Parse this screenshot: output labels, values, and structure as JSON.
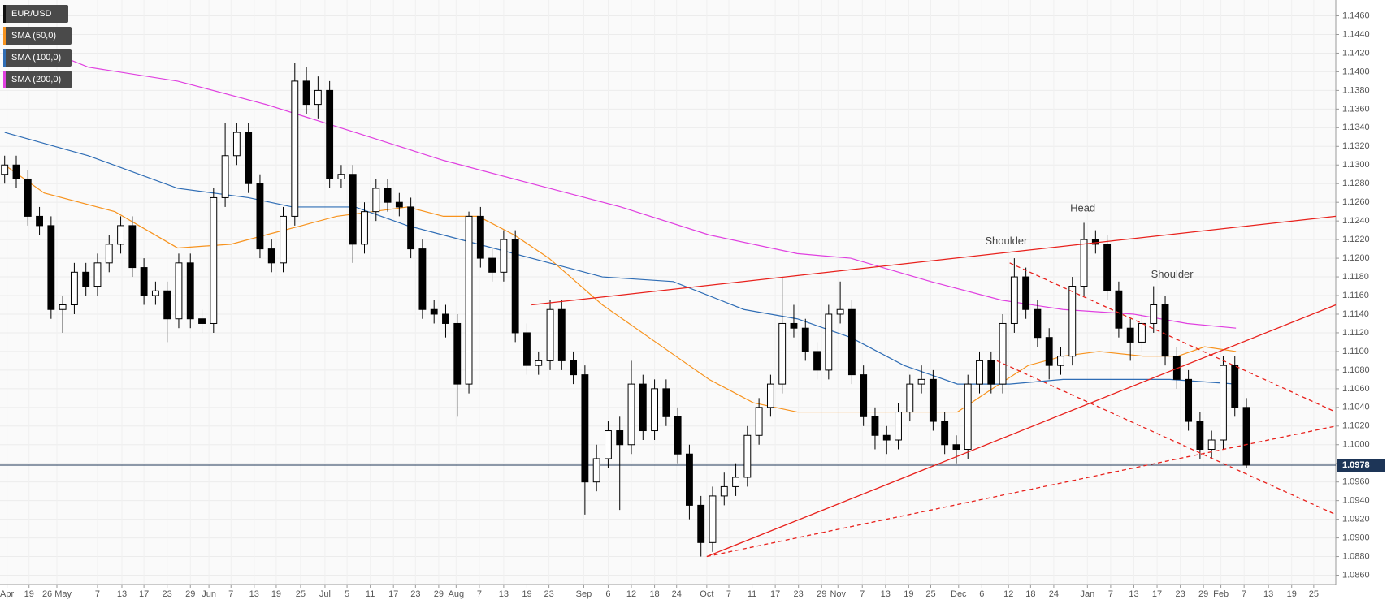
{
  "chart_data": {
    "type": "candlestick",
    "xlim": [
      -0.4,
      114.7
    ],
    "ylim": [
      1.085,
      1.1477
    ],
    "grid": true,
    "legend": "top-left",
    "yticks": [
      {
        "value": 1.086,
        "label": "1.0860"
      },
      {
        "value": 1.088,
        "label": "1.0880"
      },
      {
        "value": 1.09,
        "label": "1.0900"
      },
      {
        "value": 1.092,
        "label": "1.0920"
      },
      {
        "value": 1.094,
        "label": "1.0940"
      },
      {
        "value": 1.096,
        "label": "1.0960"
      },
      {
        "value": 1.098,
        "label": "1.0980"
      },
      {
        "value": 1.1,
        "label": "1.1000"
      },
      {
        "value": 1.102,
        "label": "1.1020"
      },
      {
        "value": 1.104,
        "label": "1.1040"
      },
      {
        "value": 1.106,
        "label": "1.1060"
      },
      {
        "value": 1.108,
        "label": "1.1080"
      },
      {
        "value": 1.11,
        "label": "1.1100"
      },
      {
        "value": 1.112,
        "label": "1.1120"
      },
      {
        "value": 1.114,
        "label": "1.1140"
      },
      {
        "value": 1.116,
        "label": "1.1160"
      },
      {
        "value": 1.118,
        "label": "1.1180"
      },
      {
        "value": 1.12,
        "label": "1.1200"
      },
      {
        "value": 1.122,
        "label": "1.1220"
      },
      {
        "value": 1.124,
        "label": "1.1240"
      },
      {
        "value": 1.126,
        "label": "1.1260"
      },
      {
        "value": 1.128,
        "label": "1.1280"
      },
      {
        "value": 1.13,
        "label": "1.1300"
      },
      {
        "value": 1.132,
        "label": "1.1320"
      },
      {
        "value": 1.134,
        "label": "1.1340"
      },
      {
        "value": 1.136,
        "label": "1.1360"
      },
      {
        "value": 1.138,
        "label": "1.1380"
      },
      {
        "value": 1.14,
        "label": "1.1400"
      },
      {
        "value": 1.142,
        "label": "1.1420"
      },
      {
        "value": 1.144,
        "label": "1.1440"
      },
      {
        "value": 1.146,
        "label": "1.1460"
      }
    ],
    "xticks": [
      {
        "value": 0.2,
        "label": "Apr"
      },
      {
        "value": 2.1,
        "label": "19"
      },
      {
        "value": 4.5,
        "label": "26 May"
      },
      {
        "value": 8.0,
        "label": "7"
      },
      {
        "value": 10.1,
        "label": "13"
      },
      {
        "value": 12.0,
        "label": "17"
      },
      {
        "value": 14.0,
        "label": "23"
      },
      {
        "value": 16.0,
        "label": "29"
      },
      {
        "value": 17.6,
        "label": "Jun"
      },
      {
        "value": 19.5,
        "label": "7"
      },
      {
        "value": 21.5,
        "label": "13"
      },
      {
        "value": 23.4,
        "label": "19"
      },
      {
        "value": 25.5,
        "label": "25"
      },
      {
        "value": 27.6,
        "label": "Jul"
      },
      {
        "value": 29.5,
        "label": "5"
      },
      {
        "value": 31.5,
        "label": "11"
      },
      {
        "value": 33.5,
        "label": "17"
      },
      {
        "value": 35.4,
        "label": "23"
      },
      {
        "value": 37.4,
        "label": "29"
      },
      {
        "value": 38.9,
        "label": "Aug"
      },
      {
        "value": 40.9,
        "label": "7"
      },
      {
        "value": 43.0,
        "label": "13"
      },
      {
        "value": 45.0,
        "label": "19"
      },
      {
        "value": 46.9,
        "label": "23"
      },
      {
        "value": 49.9,
        "label": "Sep"
      },
      {
        "value": 52.0,
        "label": "6"
      },
      {
        "value": 54.0,
        "label": "12"
      },
      {
        "value": 56.0,
        "label": "18"
      },
      {
        "value": 57.9,
        "label": "24"
      },
      {
        "value": 60.5,
        "label": "Oct"
      },
      {
        "value": 62.4,
        "label": "7"
      },
      {
        "value": 64.4,
        "label": "11"
      },
      {
        "value": 66.4,
        "label": "17"
      },
      {
        "value": 68.4,
        "label": "23"
      },
      {
        "value": 70.4,
        "label": "29"
      },
      {
        "value": 71.8,
        "label": "Nov"
      },
      {
        "value": 73.9,
        "label": "7"
      },
      {
        "value": 75.9,
        "label": "13"
      },
      {
        "value": 77.9,
        "label": "19"
      },
      {
        "value": 79.8,
        "label": "25"
      },
      {
        "value": 82.2,
        "label": "Dec"
      },
      {
        "value": 84.2,
        "label": "6"
      },
      {
        "value": 86.5,
        "label": "12"
      },
      {
        "value": 88.4,
        "label": "18"
      },
      {
        "value": 90.4,
        "label": "24"
      },
      {
        "value": 93.3,
        "label": "Jan"
      },
      {
        "value": 95.3,
        "label": "7"
      },
      {
        "value": 97.3,
        "label": "13"
      },
      {
        "value": 99.3,
        "label": "17"
      },
      {
        "value": 101.3,
        "label": "23"
      },
      {
        "value": 103.3,
        "label": "29"
      },
      {
        "value": 104.8,
        "label": "Feb"
      },
      {
        "value": 106.8,
        "label": "7"
      },
      {
        "value": 108.9,
        "label": "13"
      },
      {
        "value": 110.9,
        "label": "19"
      },
      {
        "value": 112.8,
        "label": "25"
      }
    ],
    "series": [
      {
        "name": "EUR/USD",
        "type": "candlestick",
        "color": "#000000",
        "up_color": "#ffffff",
        "open": [
          1.129,
          1.13,
          1.1285,
          1.1245,
          1.1235,
          1.1145,
          1.115,
          1.1185,
          1.117,
          1.1195,
          1.1215,
          1.1235,
          1.119,
          1.116,
          1.1165,
          1.1135,
          1.1195,
          1.1135,
          1.113,
          1.1265,
          1.131,
          1.1335,
          1.128,
          1.121,
          1.1195,
          1.1245,
          1.139,
          1.1365,
          1.138,
          1.1285,
          1.129,
          1.1215,
          1.125,
          1.1275,
          1.126,
          1.1255,
          1.121,
          1.1145,
          1.114,
          1.113,
          1.1065,
          1.1245,
          1.12,
          1.1185,
          1.122,
          1.112,
          1.1085,
          1.109,
          1.1145,
          1.109,
          1.1075,
          1.096,
          1.0985,
          1.1015,
          1.1,
          1.1065,
          1.1015,
          1.106,
          1.103,
          1.099,
          1.0935,
          1.0895,
          1.0945,
          1.0955,
          1.0965,
          1.101,
          1.104,
          1.1065,
          1.113,
          1.1125,
          1.11,
          1.108,
          1.114,
          1.1145,
          1.1075,
          1.103,
          1.101,
          1.1005,
          1.1035,
          1.1065,
          1.107,
          1.1025,
          1.1,
          1.0995,
          1.1065,
          1.109,
          1.1065,
          1.113,
          1.118,
          1.1145,
          1.1115,
          1.1085,
          1.1095,
          1.117,
          1.122,
          1.1215,
          1.1165,
          1.1125,
          1.111,
          1.113,
          1.115,
          1.1095,
          1.107,
          1.1025,
          1.0995,
          1.1005,
          1.1085,
          1.104
        ],
        "high": [
          1.131,
          1.131,
          1.1295,
          1.1255,
          1.1245,
          1.116,
          1.1195,
          1.1195,
          1.1205,
          1.1225,
          1.1245,
          1.1245,
          1.12,
          1.1175,
          1.1175,
          1.1205,
          1.1205,
          1.1145,
          1.1275,
          1.1345,
          1.1345,
          1.1345,
          1.129,
          1.122,
          1.1255,
          1.141,
          1.1405,
          1.1395,
          1.139,
          1.13,
          1.13,
          1.126,
          1.1285,
          1.1285,
          1.127,
          1.1265,
          1.122,
          1.1155,
          1.115,
          1.114,
          1.125,
          1.1255,
          1.121,
          1.123,
          1.123,
          1.113,
          1.11,
          1.1155,
          1.1155,
          1.11,
          1.1085,
          1.1,
          1.1025,
          1.103,
          1.109,
          1.1075,
          1.107,
          1.107,
          1.104,
          1.1,
          1.0945,
          1.0955,
          1.097,
          1.098,
          1.102,
          1.105,
          1.1075,
          1.118,
          1.115,
          1.1135,
          1.111,
          1.115,
          1.1175,
          1.1155,
          1.1085,
          1.104,
          1.102,
          1.1045,
          1.1075,
          1.1085,
          1.108,
          1.1035,
          1.101,
          1.1075,
          1.11,
          1.11,
          1.114,
          1.12,
          1.119,
          1.1155,
          1.1125,
          1.1105,
          1.118,
          1.1238,
          1.123,
          1.1225,
          1.1175,
          1.1135,
          1.114,
          1.117,
          1.116,
          1.1105,
          1.108,
          1.1035,
          1.1015,
          1.1095,
          1.1095,
          1.105
        ],
        "low": [
          1.128,
          1.1275,
          1.1235,
          1.1225,
          1.1135,
          1.112,
          1.114,
          1.116,
          1.116,
          1.1185,
          1.1205,
          1.118,
          1.115,
          1.115,
          1.111,
          1.1125,
          1.1125,
          1.112,
          1.112,
          1.1255,
          1.13,
          1.127,
          1.12,
          1.1185,
          1.1185,
          1.1235,
          1.1355,
          1.135,
          1.1275,
          1.1275,
          1.1195,
          1.1205,
          1.124,
          1.125,
          1.1245,
          1.12,
          1.1135,
          1.113,
          1.1115,
          1.103,
          1.1055,
          1.119,
          1.1175,
          1.1175,
          1.111,
          1.1075,
          1.1075,
          1.108,
          1.108,
          1.1065,
          1.0925,
          1.095,
          1.0975,
          1.093,
          1.099,
          1.1005,
          1.1005,
          1.102,
          1.098,
          1.092,
          1.088,
          1.0885,
          1.0935,
          1.0945,
          1.0955,
          1.1,
          1.103,
          1.1055,
          1.1115,
          1.109,
          1.107,
          1.107,
          1.113,
          1.1065,
          1.102,
          1.0995,
          1.099,
          1.0995,
          1.1025,
          1.1055,
          1.1015,
          1.099,
          1.098,
          1.0985,
          1.1055,
          1.1055,
          1.1055,
          1.112,
          1.1135,
          1.1105,
          1.107,
          1.1075,
          1.1085,
          1.116,
          1.1205,
          1.1155,
          1.1115,
          1.109,
          1.11,
          1.112,
          1.1085,
          1.106,
          1.1015,
          1.0985,
          1.0985,
          1.0995,
          1.103,
          1.0975
        ],
        "close": [
          1.13,
          1.1285,
          1.1245,
          1.1235,
          1.1145,
          1.115,
          1.1185,
          1.117,
          1.1195,
          1.1215,
          1.1235,
          1.119,
          1.116,
          1.1165,
          1.1135,
          1.1195,
          1.1135,
          1.113,
          1.1265,
          1.131,
          1.1335,
          1.128,
          1.121,
          1.1195,
          1.1245,
          1.139,
          1.1365,
          1.138,
          1.1285,
          1.129,
          1.1215,
          1.125,
          1.1275,
          1.126,
          1.1255,
          1.121,
          1.1145,
          1.114,
          1.113,
          1.1065,
          1.1245,
          1.12,
          1.1185,
          1.122,
          1.112,
          1.1085,
          1.109,
          1.1145,
          1.109,
          1.1075,
          1.096,
          1.0985,
          1.1015,
          1.1,
          1.1065,
          1.1015,
          1.106,
          1.103,
          1.099,
          1.0935,
          1.0895,
          1.0945,
          1.0955,
          1.0965,
          1.101,
          1.104,
          1.1065,
          1.113,
          1.1125,
          1.11,
          1.108,
          1.114,
          1.1145,
          1.1075,
          1.103,
          1.101,
          1.1005,
          1.1035,
          1.1065,
          1.107,
          1.1025,
          1.1,
          1.0995,
          1.1065,
          1.109,
          1.1065,
          1.113,
          1.118,
          1.1145,
          1.1115,
          1.1085,
          1.1095,
          1.117,
          1.122,
          1.1215,
          1.1165,
          1.1125,
          1.111,
          1.113,
          1.115,
          1.1095,
          1.107,
          1.1025,
          1.0995,
          1.1005,
          1.1085,
          1.104,
          1.0978
        ]
      },
      {
        "name": "SMA (50,0)",
        "type": "line",
        "color": "#f7931e",
        "x": [
          0,
          3.4,
          9.5,
          14.9,
          19.5,
          22.5,
          25.6,
          28.6,
          31.7,
          34.7,
          37.8,
          40.8,
          43.9,
          46.9,
          51.5,
          56.1,
          60.7,
          64.5,
          68.3,
          72.1,
          76,
          79.8,
          82.1,
          85.1,
          88.2,
          91.2,
          94.3,
          98.1,
          101.1,
          103.4,
          106.1
        ],
        "values": [
          1.13,
          1.127,
          1.125,
          1.1211,
          1.1215,
          1.1225,
          1.1235,
          1.1245,
          1.125,
          1.1255,
          1.1245,
          1.1245,
          1.1225,
          1.12,
          1.115,
          1.111,
          1.107,
          1.1045,
          1.1035,
          1.1035,
          1.1035,
          1.1035,
          1.1035,
          1.106,
          1.1085,
          1.1095,
          1.11,
          1.1095,
          1.1095,
          1.1105,
          1.11
        ]
      },
      {
        "name": "SMA (100,0)",
        "type": "line",
        "color": "#2f6db5",
        "x": [
          0,
          7.2,
          14.9,
          21,
          24.8,
          30.2,
          34.7,
          39.3,
          45.4,
          51.5,
          57.6,
          63.7,
          68.3,
          72.9,
          77.5,
          82.1,
          86.6,
          91.2,
          95.8,
          100.4,
          106.1
        ],
        "values": [
          1.1335,
          1.131,
          1.1275,
          1.1265,
          1.1255,
          1.1255,
          1.1235,
          1.122,
          1.12,
          1.118,
          1.1175,
          1.1145,
          1.1135,
          1.1115,
          1.1085,
          1.1065,
          1.1065,
          1.107,
          1.107,
          1.107,
          1.1065
        ]
      },
      {
        "name": "SMA (200,0)",
        "type": "line",
        "color": "#e040e0",
        "x": [
          4.2,
          7.2,
          14.9,
          22.5,
          30.2,
          37.8,
          45.4,
          53.1,
          60.7,
          68.3,
          72.9,
          79.8,
          85.9,
          91.2,
          97.3,
          101.9,
          106.1
        ],
        "values": [
          1.142,
          1.1405,
          1.139,
          1.1365,
          1.1335,
          1.1305,
          1.128,
          1.1255,
          1.1225,
          1.1205,
          1.12,
          1.1175,
          1.1155,
          1.1145,
          1.114,
          1.113,
          1.1125
        ]
      }
    ],
    "trendlines": [
      {
        "color": "#e8211c",
        "dashed": false,
        "x": [
          45.4,
          114.7
        ],
        "values": [
          1.115,
          1.1245
        ]
      },
      {
        "color": "#e8211c",
        "dashed": false,
        "x": [
          60.5,
          114.7
        ],
        "values": [
          1.088,
          1.115
        ]
      },
      {
        "color": "#e8211c",
        "dashed": true,
        "x": [
          60.5,
          114.7
        ],
        "values": [
          1.088,
          1.102
        ]
      },
      {
        "color": "#e8211c",
        "dashed": true,
        "x": [
          86.6,
          114.7
        ],
        "values": [
          1.1195,
          1.1035
        ]
      },
      {
        "color": "#e8211c",
        "dashed": true,
        "x": [
          85.5,
          114.7
        ],
        "values": [
          1.109,
          1.0925
        ]
      }
    ],
    "annotations": [
      {
        "text": "Shoulder",
        "x": 86.3,
        "y": 1.1218
      },
      {
        "text": "Head",
        "x": 92.9,
        "y": 1.1253
      },
      {
        "text": "Shoulder",
        "x": 100.6,
        "y": 1.1182
      }
    ],
    "last_price": 1.0978,
    "last_price_color": "#1d3557"
  }
}
